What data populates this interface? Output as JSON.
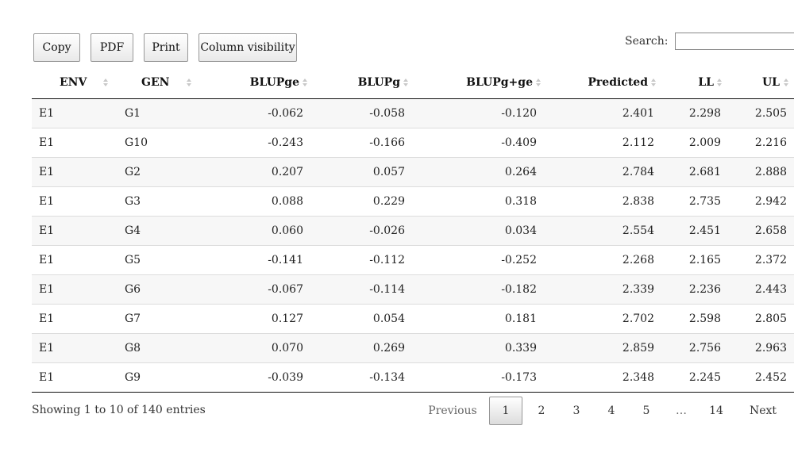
{
  "toolbar": {
    "copy": "Copy",
    "pdf": "PDF",
    "print": "Print",
    "column_visibility": "Column visibility"
  },
  "search": {
    "label": "Search:",
    "value": ""
  },
  "table": {
    "headers": [
      "ENV",
      "GEN",
      "BLUPge",
      "BLUPg",
      "BLUPg+ge",
      "Predicted",
      "LL",
      "UL"
    ],
    "rows": [
      [
        "E1",
        "G1",
        "-0.062",
        "-0.058",
        "-0.120",
        "2.401",
        "2.298",
        "2.505"
      ],
      [
        "E1",
        "G10",
        "-0.243",
        "-0.166",
        "-0.409",
        "2.112",
        "2.009",
        "2.216"
      ],
      [
        "E1",
        "G2",
        "0.207",
        "0.057",
        "0.264",
        "2.784",
        "2.681",
        "2.888"
      ],
      [
        "E1",
        "G3",
        "0.088",
        "0.229",
        "0.318",
        "2.838",
        "2.735",
        "2.942"
      ],
      [
        "E1",
        "G4",
        "0.060",
        "-0.026",
        "0.034",
        "2.554",
        "2.451",
        "2.658"
      ],
      [
        "E1",
        "G5",
        "-0.141",
        "-0.112",
        "-0.252",
        "2.268",
        "2.165",
        "2.372"
      ],
      [
        "E1",
        "G6",
        "-0.067",
        "-0.114",
        "-0.182",
        "2.339",
        "2.236",
        "2.443"
      ],
      [
        "E1",
        "G7",
        "0.127",
        "0.054",
        "0.181",
        "2.702",
        "2.598",
        "2.805"
      ],
      [
        "E1",
        "G8",
        "0.070",
        "0.269",
        "0.339",
        "2.859",
        "2.756",
        "2.963"
      ],
      [
        "E1",
        "G9",
        "-0.039",
        "-0.134",
        "-0.173",
        "2.348",
        "2.245",
        "2.452"
      ]
    ]
  },
  "info": "Showing 1 to 10 of 140 entries",
  "pagination": {
    "previous": "Previous",
    "current": "1",
    "pages": [
      "2",
      "3",
      "4",
      "5"
    ],
    "ellipsis": "…",
    "last": "14",
    "next": "Next"
  },
  "icons": {
    "sort": "sort-both-icon"
  }
}
